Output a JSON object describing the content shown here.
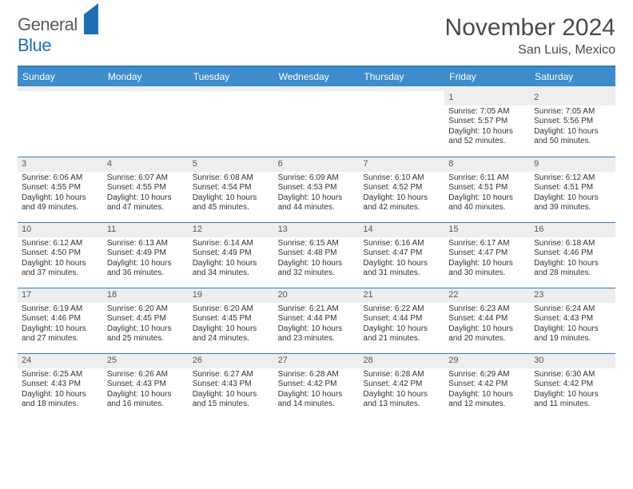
{
  "brand": {
    "gen": "General",
    "blue": "Blue"
  },
  "title": "November 2024",
  "subtitle": "San Luis, Mexico",
  "colors": {
    "header_bg": "#3d8ccc",
    "rule": "#2e7cc0",
    "band": "#eeeeee",
    "text": "#333333",
    "title_text": "#4a4a4a",
    "logo_blue": "#1f6fb2",
    "logo_grey": "#5a5a5a"
  },
  "fontsizes": {
    "title": 30,
    "subtitle": 16,
    "dayhdr": 12,
    "daynum": 11,
    "body": 10,
    "logo": 22
  },
  "day_headers": [
    "Sunday",
    "Monday",
    "Tuesday",
    "Wednesday",
    "Thursday",
    "Friday",
    "Saturday"
  ],
  "weeks": [
    [
      {
        "n": "",
        "empty": true
      },
      {
        "n": "",
        "empty": true
      },
      {
        "n": "",
        "empty": true
      },
      {
        "n": "",
        "empty": true
      },
      {
        "n": "",
        "empty": true
      },
      {
        "n": "1",
        "sunrise": "7:05 AM",
        "sunset": "5:57 PM",
        "daylight": "10 hours and 52 minutes."
      },
      {
        "n": "2",
        "sunrise": "7:05 AM",
        "sunset": "5:56 PM",
        "daylight": "10 hours and 50 minutes."
      }
    ],
    [
      {
        "n": "3",
        "sunrise": "6:06 AM",
        "sunset": "4:55 PM",
        "daylight": "10 hours and 49 minutes."
      },
      {
        "n": "4",
        "sunrise": "6:07 AM",
        "sunset": "4:55 PM",
        "daylight": "10 hours and 47 minutes."
      },
      {
        "n": "5",
        "sunrise": "6:08 AM",
        "sunset": "4:54 PM",
        "daylight": "10 hours and 45 minutes."
      },
      {
        "n": "6",
        "sunrise": "6:09 AM",
        "sunset": "4:53 PM",
        "daylight": "10 hours and 44 minutes."
      },
      {
        "n": "7",
        "sunrise": "6:10 AM",
        "sunset": "4:52 PM",
        "daylight": "10 hours and 42 minutes."
      },
      {
        "n": "8",
        "sunrise": "6:11 AM",
        "sunset": "4:51 PM",
        "daylight": "10 hours and 40 minutes."
      },
      {
        "n": "9",
        "sunrise": "6:12 AM",
        "sunset": "4:51 PM",
        "daylight": "10 hours and 39 minutes."
      }
    ],
    [
      {
        "n": "10",
        "sunrise": "6:12 AM",
        "sunset": "4:50 PM",
        "daylight": "10 hours and 37 minutes."
      },
      {
        "n": "11",
        "sunrise": "6:13 AM",
        "sunset": "4:49 PM",
        "daylight": "10 hours and 36 minutes."
      },
      {
        "n": "12",
        "sunrise": "6:14 AM",
        "sunset": "4:49 PM",
        "daylight": "10 hours and 34 minutes."
      },
      {
        "n": "13",
        "sunrise": "6:15 AM",
        "sunset": "4:48 PM",
        "daylight": "10 hours and 32 minutes."
      },
      {
        "n": "14",
        "sunrise": "6:16 AM",
        "sunset": "4:47 PM",
        "daylight": "10 hours and 31 minutes."
      },
      {
        "n": "15",
        "sunrise": "6:17 AM",
        "sunset": "4:47 PM",
        "daylight": "10 hours and 30 minutes."
      },
      {
        "n": "16",
        "sunrise": "6:18 AM",
        "sunset": "4:46 PM",
        "daylight": "10 hours and 28 minutes."
      }
    ],
    [
      {
        "n": "17",
        "sunrise": "6:19 AM",
        "sunset": "4:46 PM",
        "daylight": "10 hours and 27 minutes."
      },
      {
        "n": "18",
        "sunrise": "6:20 AM",
        "sunset": "4:45 PM",
        "daylight": "10 hours and 25 minutes."
      },
      {
        "n": "19",
        "sunrise": "6:20 AM",
        "sunset": "4:45 PM",
        "daylight": "10 hours and 24 minutes."
      },
      {
        "n": "20",
        "sunrise": "6:21 AM",
        "sunset": "4:44 PM",
        "daylight": "10 hours and 23 minutes."
      },
      {
        "n": "21",
        "sunrise": "6:22 AM",
        "sunset": "4:44 PM",
        "daylight": "10 hours and 21 minutes."
      },
      {
        "n": "22",
        "sunrise": "6:23 AM",
        "sunset": "4:44 PM",
        "daylight": "10 hours and 20 minutes."
      },
      {
        "n": "23",
        "sunrise": "6:24 AM",
        "sunset": "4:43 PM",
        "daylight": "10 hours and 19 minutes."
      }
    ],
    [
      {
        "n": "24",
        "sunrise": "6:25 AM",
        "sunset": "4:43 PM",
        "daylight": "10 hours and 18 minutes."
      },
      {
        "n": "25",
        "sunrise": "6:26 AM",
        "sunset": "4:43 PM",
        "daylight": "10 hours and 16 minutes."
      },
      {
        "n": "26",
        "sunrise": "6:27 AM",
        "sunset": "4:43 PM",
        "daylight": "10 hours and 15 minutes."
      },
      {
        "n": "27",
        "sunrise": "6:28 AM",
        "sunset": "4:42 PM",
        "daylight": "10 hours and 14 minutes."
      },
      {
        "n": "28",
        "sunrise": "6:28 AM",
        "sunset": "4:42 PM",
        "daylight": "10 hours and 13 minutes."
      },
      {
        "n": "29",
        "sunrise": "6:29 AM",
        "sunset": "4:42 PM",
        "daylight": "10 hours and 12 minutes."
      },
      {
        "n": "30",
        "sunrise": "6:30 AM",
        "sunset": "4:42 PM",
        "daylight": "10 hours and 11 minutes."
      }
    ]
  ],
  "labels": {
    "sunrise": "Sunrise: ",
    "sunset": "Sunset: ",
    "daylight": "Daylight: "
  }
}
